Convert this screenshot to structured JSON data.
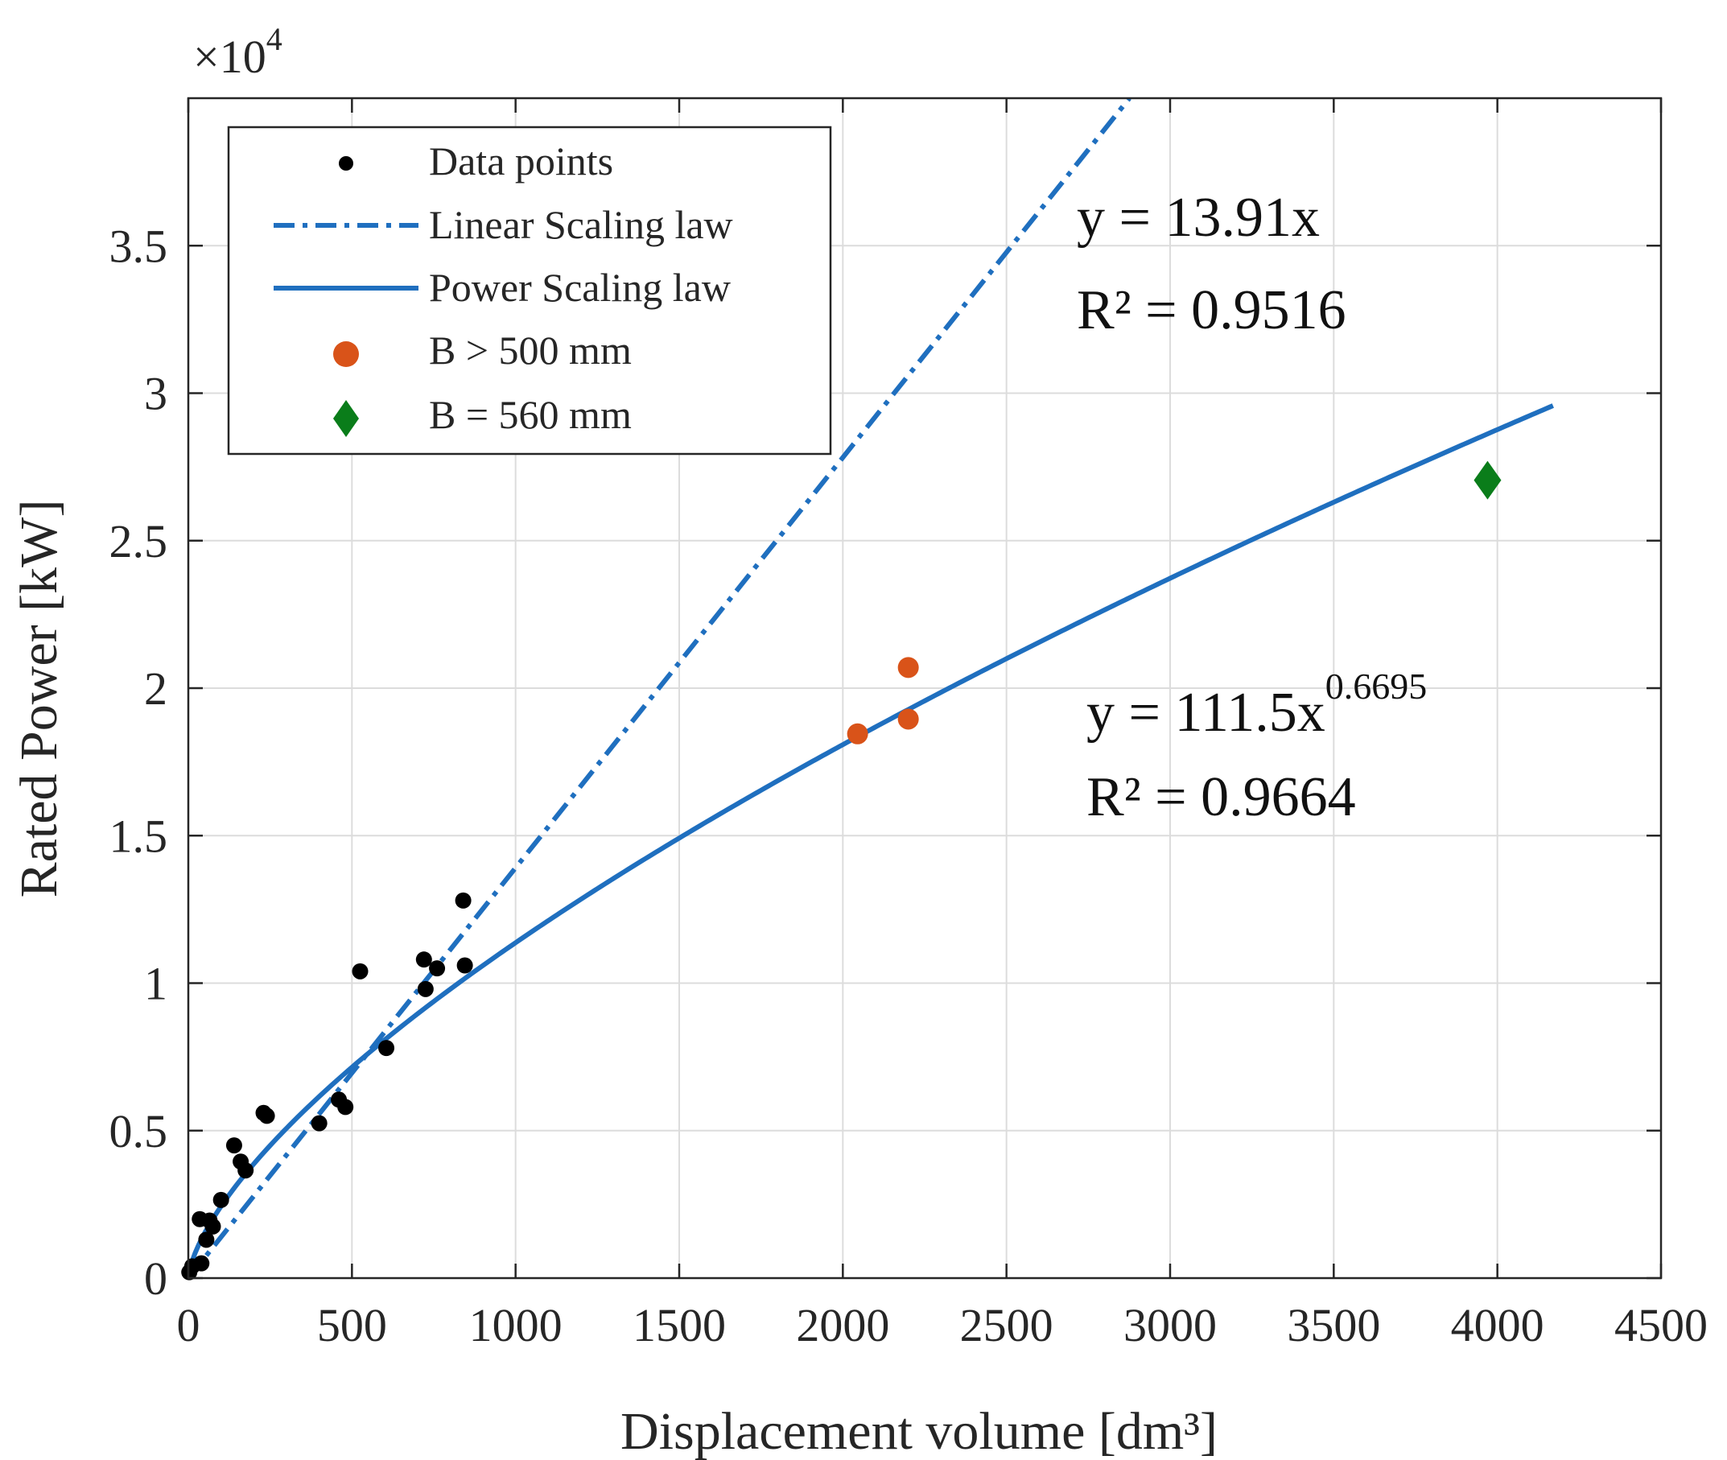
{
  "chart_data": {
    "type": "scatter",
    "title": "",
    "xlabel": "Displacement volume [dm³]",
    "ylabel": "Rated Power [kW]",
    "y_exponent_label": "×10",
    "y_exponent_power": "4",
    "xlim": [
      0,
      4500
    ],
    "ylim": [
      0,
      40000
    ],
    "x_ticks": [
      0,
      500,
      1000,
      1500,
      2000,
      2500,
      3000,
      3500,
      4000,
      4500
    ],
    "y_ticks": [
      0,
      5000,
      10000,
      15000,
      20000,
      25000,
      30000,
      35000
    ],
    "y_tick_labels": [
      "0",
      "0.5",
      "1",
      "1.5",
      "2",
      "2.5",
      "3",
      "3.5"
    ],
    "grid": true,
    "legend_position": "top-left",
    "colors": {
      "data_points": "#000000",
      "linear": "#1f6fbf",
      "power": "#1f6fbf",
      "b_gt_500": "#d95319",
      "b_eq_560": "#0a7d1a"
    },
    "series": [
      {
        "name": "Data points",
        "kind": "scatter",
        "marker": "dot",
        "points": [
          [
            3,
            200
          ],
          [
            12,
            400
          ],
          [
            35,
            2000
          ],
          [
            40,
            500
          ],
          [
            55,
            1300
          ],
          [
            65,
            1950
          ],
          [
            75,
            1750
          ],
          [
            100,
            2650
          ],
          [
            140,
            4500
          ],
          [
            160,
            3950
          ],
          [
            175,
            3650
          ],
          [
            230,
            5600
          ],
          [
            240,
            5500
          ],
          [
            400,
            5250
          ],
          [
            460,
            6050
          ],
          [
            480,
            5800
          ],
          [
            525,
            10400
          ],
          [
            605,
            7800
          ],
          [
            720,
            10800
          ],
          [
            725,
            9800
          ],
          [
            760,
            10500
          ],
          [
            840,
            12800
          ],
          [
            845,
            10600
          ]
        ]
      },
      {
        "name": "Linear Scaling law",
        "kind": "line",
        "style": "dash-dot",
        "equation": "y = 13.91x",
        "slope": 13.91
      },
      {
        "name": "Power Scaling law",
        "kind": "line",
        "style": "solid",
        "equation": "y = 111.5x^0.6695",
        "coefficient": 111.5,
        "exponent": 0.6695,
        "x_range": [
          0,
          4170
        ]
      },
      {
        "name": "B > 500 mm",
        "kind": "scatter",
        "marker": "dot",
        "points": [
          [
            2045,
            18450
          ],
          [
            2200,
            20700
          ],
          [
            2200,
            18950
          ]
        ]
      },
      {
        "name": "B = 560 mm",
        "kind": "scatter",
        "marker": "diamond",
        "points": [
          [
            3970,
            27050
          ]
        ]
      }
    ],
    "annotations": [
      {
        "id": "linear",
        "line1": "y = 13.91x",
        "r2": "R² = 0.9516"
      },
      {
        "id": "power",
        "base": "y = 111.5x",
        "sup": "0.6695",
        "r2": "R² = 0.9664"
      }
    ]
  }
}
